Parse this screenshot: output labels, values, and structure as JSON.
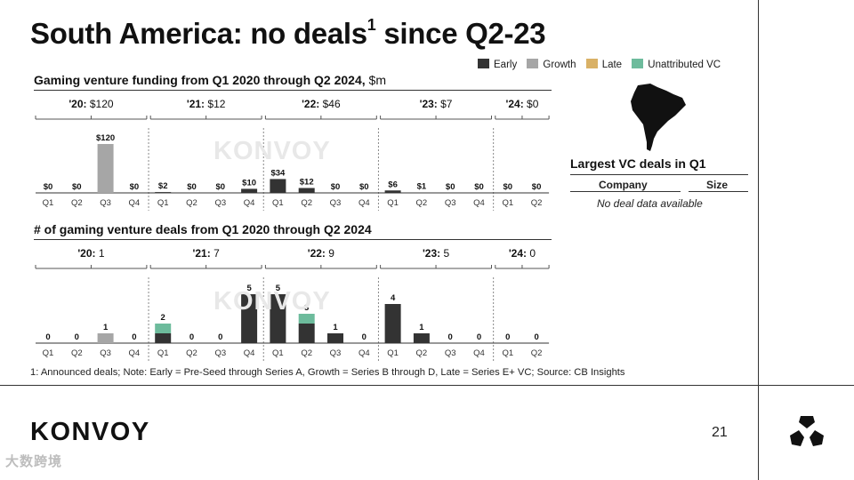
{
  "title": "South America: no deals",
  "title_sup": "1",
  "title_tail": " since Q2-23",
  "legend": [
    {
      "label": "Early",
      "color": "#333333"
    },
    {
      "label": "Growth",
      "color": "#a6a6a6"
    },
    {
      "label": "Late",
      "color": "#d9b166"
    },
    {
      "label": "Unattributed VC",
      "color": "#6dbb9c"
    }
  ],
  "funding": {
    "title": "Gaming venture funding from Q1 2020 through Q2 2024,",
    "unit": "$m"
  },
  "deals": {
    "title": "# of gaming venture deals from Q1 2020 through Q2 2024"
  },
  "chart_data": [
    {
      "type": "bar",
      "title": "Gaming venture funding from Q1 2020 through Q2 2024, $m",
      "categories": [
        "Q1",
        "Q2",
        "Q3",
        "Q4",
        "Q1",
        "Q2",
        "Q3",
        "Q4",
        "Q1",
        "Q2",
        "Q3",
        "Q4",
        "Q1",
        "Q2",
        "Q3",
        "Q4",
        "Q1",
        "Q2"
      ],
      "year_groups": [
        {
          "year": "'20",
          "total": "$120",
          "count": 4
        },
        {
          "year": "'21",
          "total": "$12",
          "count": 4
        },
        {
          "year": "'22",
          "total": "$46",
          "count": 4
        },
        {
          "year": "'23",
          "total": "$7",
          "count": 4
        },
        {
          "year": "'24",
          "total": "$0",
          "count": 2
        }
      ],
      "series": [
        {
          "name": "Early",
          "values": [
            0,
            0,
            0,
            0,
            2,
            0,
            0,
            10,
            34,
            12,
            0,
            0,
            6,
            1,
            0,
            0,
            0,
            0
          ]
        },
        {
          "name": "Growth",
          "values": [
            0,
            0,
            120,
            0,
            0,
            0,
            0,
            0,
            0,
            0,
            0,
            0,
            0,
            0,
            0,
            0,
            0,
            0
          ]
        },
        {
          "name": "Late",
          "values": [
            0,
            0,
            0,
            0,
            0,
            0,
            0,
            0,
            0,
            0,
            0,
            0,
            0,
            0,
            0,
            0,
            0,
            0
          ]
        },
        {
          "name": "Unattributed VC",
          "values": [
            0,
            0,
            0,
            0,
            0,
            0,
            0,
            0,
            0,
            0,
            0,
            0,
            0,
            0,
            0,
            0,
            0,
            0
          ]
        }
      ],
      "labels": [
        "$0",
        "$0",
        "$120",
        "$0",
        "$2",
        "$0",
        "$0",
        "$10",
        "$34",
        "$12",
        "$0",
        "$0",
        "$6",
        "$1",
        "$0",
        "$0",
        "$0",
        "$0"
      ],
      "ylim": [
        0,
        120
      ]
    },
    {
      "type": "bar",
      "title": "# of gaming venture deals from Q1 2020 through Q2 2024",
      "categories": [
        "Q1",
        "Q2",
        "Q3",
        "Q4",
        "Q1",
        "Q2",
        "Q3",
        "Q4",
        "Q1",
        "Q2",
        "Q3",
        "Q4",
        "Q1",
        "Q2",
        "Q3",
        "Q4",
        "Q1",
        "Q2"
      ],
      "year_groups": [
        {
          "year": "'20",
          "total": "1",
          "count": 4
        },
        {
          "year": "'21",
          "total": "7",
          "count": 4
        },
        {
          "year": "'22",
          "total": "9",
          "count": 4
        },
        {
          "year": "'23",
          "total": "5",
          "count": 4
        },
        {
          "year": "'24",
          "total": "0",
          "count": 2
        }
      ],
      "series": [
        {
          "name": "Early",
          "values": [
            0,
            0,
            0,
            0,
            1,
            0,
            0,
            5,
            5,
            2,
            1,
            0,
            4,
            1,
            0,
            0,
            0,
            0
          ]
        },
        {
          "name": "Growth",
          "values": [
            0,
            0,
            1,
            0,
            0,
            0,
            0,
            0,
            0,
            0,
            0,
            0,
            0,
            0,
            0,
            0,
            0,
            0
          ]
        },
        {
          "name": "Late",
          "values": [
            0,
            0,
            0,
            0,
            0,
            0,
            0,
            0,
            0,
            0,
            0,
            0,
            0,
            0,
            0,
            0,
            0,
            0
          ]
        },
        {
          "name": "Unattributed VC",
          "values": [
            0,
            0,
            0,
            0,
            1,
            0,
            0,
            0,
            0,
            1,
            0,
            0,
            0,
            0,
            0,
            0,
            0,
            0
          ]
        }
      ],
      "labels": [
        "0",
        "0",
        "1",
        "0",
        "2",
        "0",
        "0",
        "5",
        "5",
        "3",
        "1",
        "0",
        "4",
        "1",
        "0",
        "0",
        "0",
        "0"
      ],
      "ylim": [
        0,
        5
      ]
    }
  ],
  "largest_vc": {
    "title": "Largest VC deals in Q1",
    "col_company": "Company",
    "col_size": "Size",
    "empty_text": "No deal data available"
  },
  "footnote": "1: Announced deals; Note: Early = Pre-Seed through Series A, Growth = Series B through D, Late = Series E+ VC; Source: CB Insights",
  "brand": "KONVOY",
  "chart_watermark": "KONVOY",
  "page_number": "21",
  "watermark": "大数跨境"
}
